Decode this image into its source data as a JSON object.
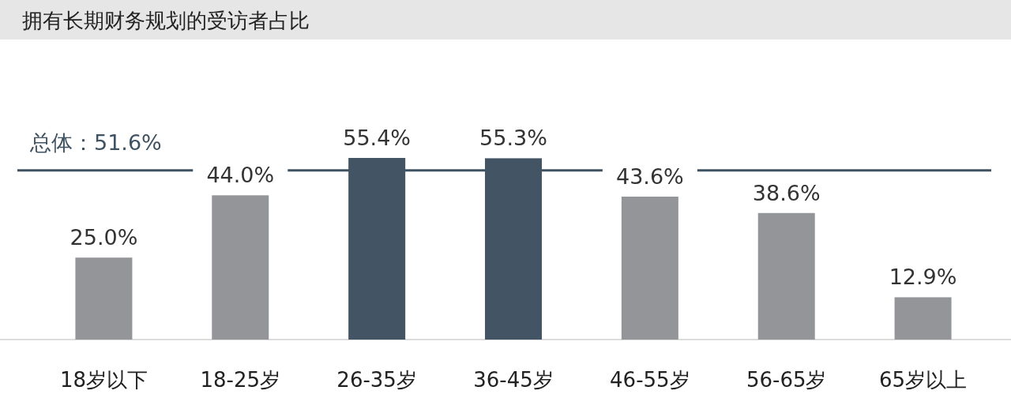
{
  "chart_data": {
    "type": "bar",
    "title": "拥有长期财务规划的受访者占比",
    "categories": [
      "18岁以下",
      "18-25岁",
      "26-35岁",
      "36-45岁",
      "46-55岁",
      "56-65岁",
      "65岁以上"
    ],
    "values": [
      25.0,
      44.0,
      55.4,
      55.3,
      43.6,
      38.6,
      12.9
    ],
    "colors": [
      "#939598",
      "#939598",
      "#435564",
      "#435564",
      "#939598",
      "#939598",
      "#939598"
    ],
    "value_labels": [
      "25.0%",
      "44.0%",
      "55.4%",
      "55.3%",
      "43.6%",
      "38.6%",
      "12.9%"
    ],
    "ref_lines": [
      {
        "axis": "y",
        "value": 51.6,
        "label": "总体：51.6%",
        "color": "#3f5262"
      }
    ]
  }
}
